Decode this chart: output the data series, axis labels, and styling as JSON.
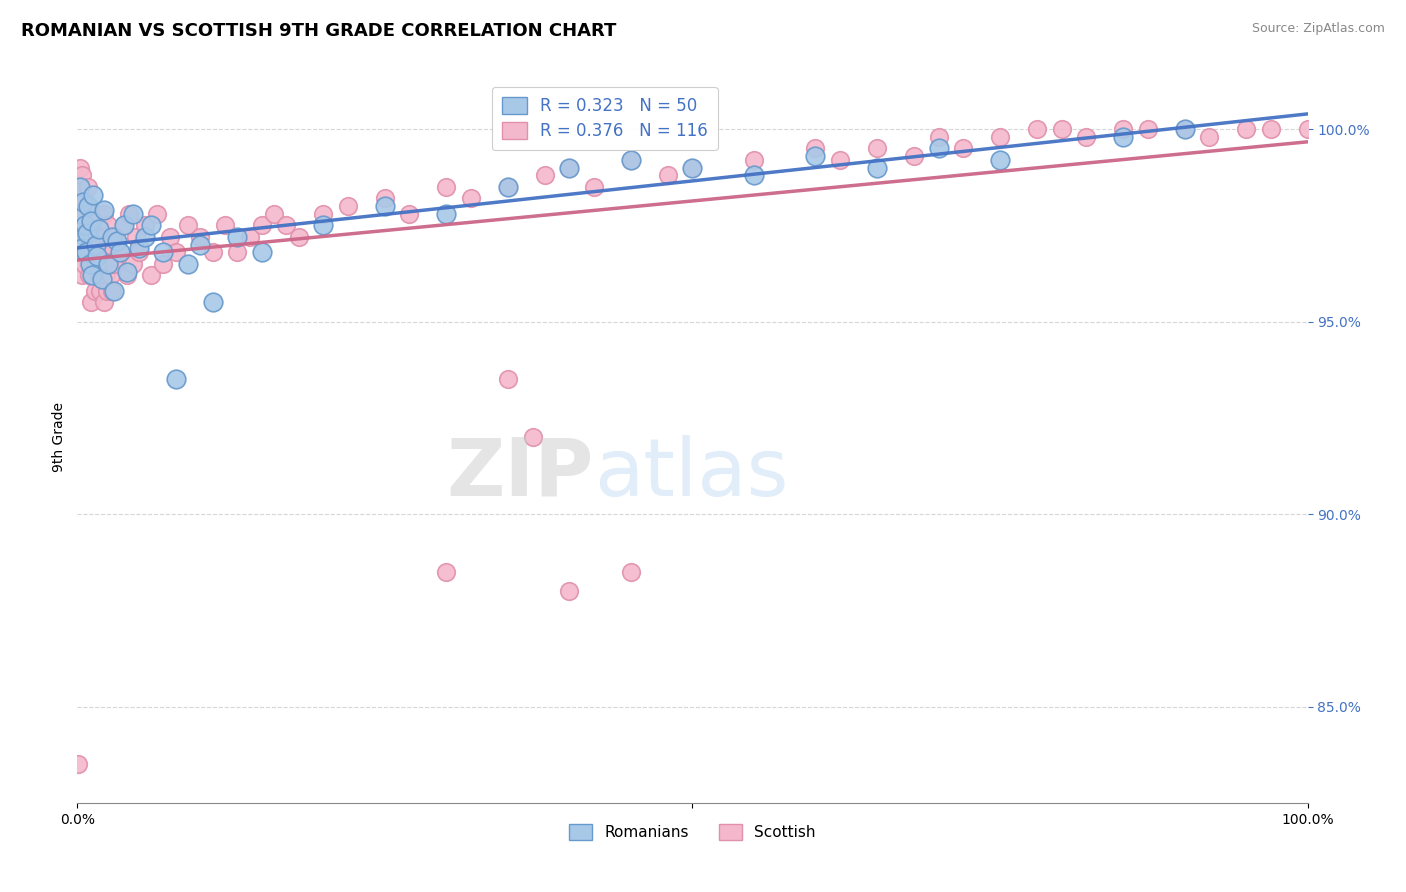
{
  "title": "ROMANIAN VS SCOTTISH 9TH GRADE CORRELATION CHART",
  "source": "Source: ZipAtlas.com",
  "ylabel": "9th Grade",
  "watermark_zip": "ZIP",
  "watermark_atlas": "atlas",
  "romanian": {
    "color": "#a8c8e8",
    "edge_color": "#6699cc",
    "label": "Romanians",
    "R": 0.323,
    "N": 50,
    "line_color": "#4472c4",
    "x": [
      0.1,
      0.2,
      0.3,
      0.4,
      0.5,
      0.6,
      0.7,
      0.8,
      0.9,
      1.0,
      1.1,
      1.2,
      1.3,
      1.5,
      1.6,
      1.8,
      2.0,
      2.2,
      2.5,
      2.8,
      3.0,
      3.2,
      3.5,
      3.8,
      4.0,
      4.5,
      5.0,
      5.5,
      6.0,
      7.0,
      8.0,
      9.0,
      10.0,
      11.0,
      13.0,
      15.0,
      20.0,
      25.0,
      30.0,
      35.0,
      40.0,
      45.0,
      50.0,
      55.0,
      60.0,
      65.0,
      70.0,
      75.0,
      85.0,
      90.0
    ],
    "y": [
      97.2,
      98.5,
      97.8,
      96.9,
      98.1,
      97.5,
      96.8,
      97.3,
      98.0,
      96.5,
      97.6,
      96.2,
      98.3,
      97.0,
      96.7,
      97.4,
      96.1,
      97.9,
      96.5,
      97.2,
      95.8,
      97.1,
      96.8,
      97.5,
      96.3,
      97.8,
      96.9,
      97.2,
      97.5,
      96.8,
      93.5,
      96.5,
      97.0,
      95.5,
      97.2,
      96.8,
      97.5,
      98.0,
      97.8,
      98.5,
      99.0,
      99.2,
      99.0,
      98.8,
      99.3,
      99.0,
      99.5,
      99.2,
      99.8,
      100.0
    ]
  },
  "scottish": {
    "color": "#f4b8cc",
    "edge_color": "#e090aa",
    "label": "Scottish",
    "R": 0.376,
    "N": 116,
    "line_color": "#cc6688",
    "x": [
      0.1,
      0.2,
      0.2,
      0.3,
      0.4,
      0.4,
      0.5,
      0.6,
      0.6,
      0.7,
      0.8,
      0.9,
      0.9,
      1.0,
      1.1,
      1.2,
      1.3,
      1.4,
      1.5,
      1.6,
      1.7,
      1.8,
      1.9,
      2.0,
      2.1,
      2.2,
      2.3,
      2.5,
      2.7,
      2.9,
      3.0,
      3.2,
      3.5,
      3.8,
      4.0,
      4.2,
      4.5,
      4.8,
      5.0,
      5.5,
      6.0,
      6.5,
      7.0,
      7.5,
      8.0,
      9.0,
      10.0,
      11.0,
      12.0,
      13.0,
      14.0,
      15.0,
      16.0,
      17.0,
      18.0,
      20.0,
      22.0,
      25.0,
      27.0,
      30.0,
      32.0,
      35.0,
      38.0,
      40.0,
      42.0,
      45.0,
      48.0,
      50.0,
      55.0,
      60.0,
      62.0,
      65.0,
      68.0,
      70.0,
      72.0,
      75.0,
      78.0,
      80.0,
      82.0,
      85.0,
      87.0,
      90.0,
      92.0,
      95.0,
      97.0,
      100.0,
      0.15,
      0.25,
      0.35,
      0.45,
      0.55,
      0.65,
      0.75,
      0.85,
      0.95,
      1.05,
      1.15,
      1.25,
      1.35,
      1.45,
      1.55,
      1.65,
      1.75,
      1.85,
      1.95,
      2.05,
      2.15,
      2.25,
      2.35,
      2.45,
      2.55,
      2.65,
      2.75,
      2.85,
      2.95,
      3.05
    ],
    "y": [
      98.5,
      97.8,
      99.0,
      98.2,
      97.5,
      98.8,
      96.9,
      97.5,
      98.1,
      96.8,
      97.2,
      98.5,
      96.5,
      97.8,
      96.2,
      97.5,
      96.8,
      97.1,
      96.5,
      97.8,
      96.2,
      97.5,
      96.8,
      97.2,
      96.5,
      97.8,
      96.2,
      97.5,
      96.8,
      97.2,
      96.5,
      97.1,
      96.8,
      97.5,
      96.2,
      97.8,
      96.5,
      97.2,
      96.8,
      97.5,
      96.2,
      97.8,
      96.5,
      97.2,
      96.8,
      97.5,
      97.2,
      96.8,
      97.5,
      96.8,
      97.2,
      97.5,
      97.8,
      97.5,
      97.2,
      97.8,
      98.0,
      98.2,
      97.8,
      98.5,
      98.2,
      98.5,
      98.8,
      99.0,
      98.5,
      99.2,
      98.8,
      99.0,
      99.2,
      99.5,
      99.2,
      99.5,
      99.3,
      99.8,
      99.5,
      99.8,
      100.0,
      100.0,
      99.8,
      100.0,
      100.0,
      100.0,
      99.8,
      100.0,
      100.0,
      100.0,
      96.8,
      97.5,
      96.2,
      97.8,
      96.5,
      97.2,
      96.8,
      97.5,
      96.2,
      97.8,
      95.5,
      96.8,
      97.2,
      95.8,
      96.5,
      97.0,
      96.2,
      95.8,
      96.5,
      97.2,
      95.5,
      96.8,
      97.2,
      95.8,
      96.5,
      97.0,
      96.2,
      95.8,
      96.5,
      97.2
    ]
  },
  "scottish_outliers": {
    "x": [
      0.05,
      30.0,
      35.0,
      37.0,
      40.0,
      45.0
    ],
    "y": [
      83.5,
      88.5,
      93.5,
      92.0,
      88.0,
      88.5
    ]
  },
  "xlim": [
    0,
    100
  ],
  "ylim": [
    82.5,
    101.5
  ],
  "yticks": [
    85.0,
    90.0,
    95.0,
    100.0
  ],
  "ytick_labels": [
    "85.0%",
    "90.0%",
    "95.0%",
    "100.0%"
  ],
  "title_fontsize": 13,
  "axis_label_fontsize": 10,
  "legend_fontsize": 12,
  "source_fontsize": 9,
  "legend_R_color": "#4472c4"
}
